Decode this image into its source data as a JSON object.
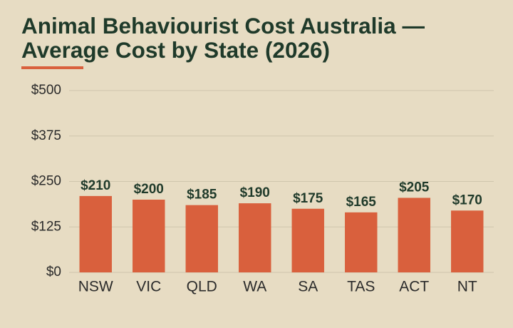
{
  "chart_data": {
    "type": "bar",
    "title": "Animal Behaviourist Cost Australia — Average Cost by State (2026)",
    "categories": [
      "NSW",
      "VIC",
      "QLD",
      "WA",
      "SA",
      "TAS",
      "ACT",
      "NT"
    ],
    "values": [
      210,
      200,
      185,
      190,
      175,
      165,
      205,
      170
    ],
    "value_labels": [
      "$210",
      "$200",
      "$185",
      "$190",
      "$175",
      "$165",
      "$205",
      "$170"
    ],
    "color": "#d9603d",
    "ylim": [
      0,
      500
    ],
    "yticks": [
      {
        "value": 0,
        "label": "$0"
      },
      {
        "value": 125,
        "label": "$125"
      },
      {
        "value": 250,
        "label": "$250"
      },
      {
        "value": 375,
        "label": "$375"
      },
      {
        "value": 500,
        "label": "$500"
      }
    ],
    "grid": true
  }
}
